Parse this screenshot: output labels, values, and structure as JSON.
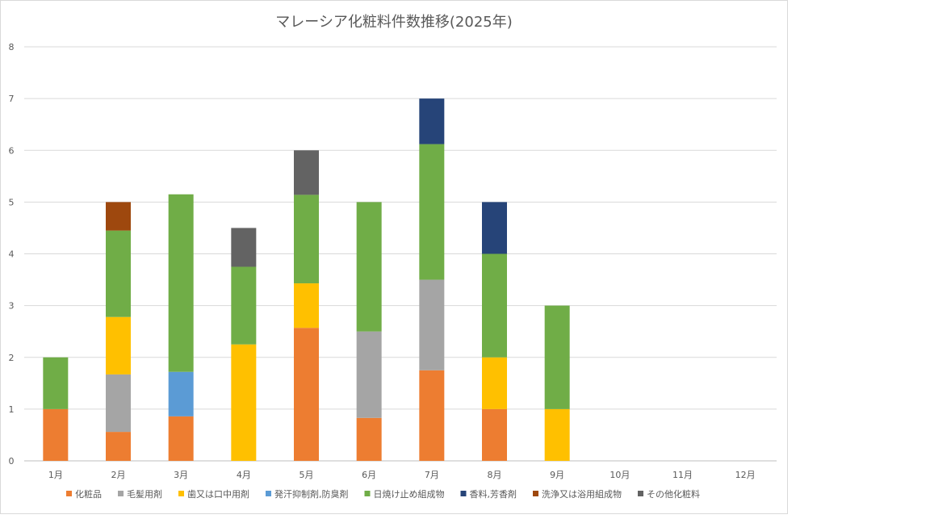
{
  "chart_data": {
    "type": "bar",
    "stacked": true,
    "title": "マレーシア化粧料件数推移(2025年)",
    "xlabel": "",
    "ylabel": "",
    "ylim": [
      0,
      8
    ],
    "yticks": [
      "0",
      "1",
      "2",
      "3",
      "4",
      "5",
      "6",
      "7",
      "8"
    ],
    "grid": true,
    "legend_position": "bottom",
    "categories": [
      "1月",
      "2月",
      "3月",
      "4月",
      "5月",
      "6月",
      "7月",
      "8月",
      "9月",
      "10月",
      "11月",
      "12月"
    ],
    "series": [
      {
        "name": "化粧品",
        "color": "#ED7D31",
        "values": [
          1,
          0.56,
          0.86,
          0,
          2.57,
          0.83,
          1.75,
          1,
          0,
          0,
          0,
          0
        ]
      },
      {
        "name": "毛髪用剤",
        "color": "#A5A5A5",
        "values": [
          0,
          1.11,
          0,
          0,
          0,
          1.67,
          1.75,
          0,
          0,
          0,
          0,
          0
        ]
      },
      {
        "name": "歯又は口中用剤",
        "color": "#FFC000",
        "values": [
          0,
          1.11,
          0,
          2.25,
          0.86,
          0,
          0,
          1,
          1,
          0,
          0,
          0
        ]
      },
      {
        "name": "発汗抑制剤,防臭剤",
        "color": "#5B9BD5",
        "values": [
          0,
          0,
          0.86,
          0,
          0,
          0,
          0,
          0,
          0,
          0,
          0,
          0
        ]
      },
      {
        "name": "日焼け止め組成物",
        "color": "#70AD47",
        "values": [
          1,
          1.67,
          3.43,
          1.5,
          1.71,
          2.5,
          2.62,
          2,
          2,
          0,
          0,
          0
        ]
      },
      {
        "name": "香料,芳香剤",
        "color": "#264478",
        "values": [
          0,
          0,
          0,
          0,
          0,
          0,
          0.88,
          1,
          0,
          0,
          0,
          0
        ]
      },
      {
        "name": "洗浄又は浴用組成物",
        "color": "#9E480E",
        "values": [
          0,
          0.55,
          0,
          0,
          0,
          0,
          0,
          0,
          0,
          0,
          0,
          0
        ]
      },
      {
        "name": "その他化粧料",
        "color": "#636363",
        "values": [
          0,
          0,
          0,
          0.75,
          0.86,
          0,
          0,
          0,
          0,
          0,
          0,
          0
        ]
      }
    ]
  }
}
